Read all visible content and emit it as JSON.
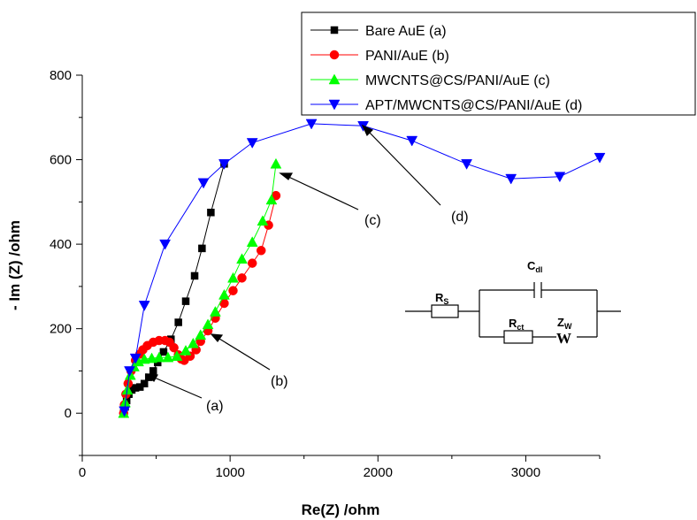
{
  "chart_data": {
    "type": "scatter",
    "xlabel": "Re(Z) /ohm",
    "ylabel": "- Im (Z) /ohm",
    "xlim": [
      0,
      3500
    ],
    "ylim": [
      -100,
      800
    ],
    "xticks": [
      0,
      1000,
      2000,
      3000
    ],
    "yticks": [
      0,
      200,
      400,
      600,
      800
    ],
    "legend_position": "top-right",
    "series": [
      {
        "name": "Bare AuE (a)",
        "color": "#000000",
        "marker": "square",
        "points": [
          [
            280,
            0
          ],
          [
            290,
            15
          ],
          [
            300,
            30
          ],
          [
            315,
            45
          ],
          [
            335,
            55
          ],
          [
            360,
            60
          ],
          [
            390,
            62
          ],
          [
            420,
            70
          ],
          [
            450,
            85
          ],
          [
            480,
            100
          ],
          [
            510,
            120
          ],
          [
            550,
            145
          ],
          [
            600,
            175
          ],
          [
            650,
            215
          ],
          [
            700,
            265
          ],
          [
            760,
            325
          ],
          [
            810,
            390
          ],
          [
            870,
            475
          ],
          [
            960,
            590
          ]
        ]
      },
      {
        "name": "PANI/AuE (b)",
        "color": "#ff0000",
        "marker": "circle",
        "points": [
          [
            280,
            0
          ],
          [
            285,
            20
          ],
          [
            295,
            45
          ],
          [
            310,
            70
          ],
          [
            330,
            100
          ],
          [
            360,
            125
          ],
          [
            390,
            140
          ],
          [
            410,
            150
          ],
          [
            440,
            160
          ],
          [
            480,
            168
          ],
          [
            520,
            172
          ],
          [
            560,
            172
          ],
          [
            590,
            168
          ],
          [
            620,
            155
          ],
          [
            650,
            138
          ],
          [
            670,
            128
          ],
          [
            690,
            125
          ],
          [
            730,
            135
          ],
          [
            770,
            150
          ],
          [
            800,
            170
          ],
          [
            850,
            195
          ],
          [
            900,
            225
          ],
          [
            960,
            260
          ],
          [
            1020,
            290
          ],
          [
            1080,
            320
          ],
          [
            1150,
            355
          ],
          [
            1210,
            385
          ],
          [
            1260,
            445
          ],
          [
            1310,
            515
          ]
        ]
      },
      {
        "name": "MWCNTS@CS/PANI/AuE (c)",
        "color": "#00ff00",
        "marker": "triangle-up",
        "points": [
          [
            280,
            0
          ],
          [
            290,
            25
          ],
          [
            305,
            55
          ],
          [
            325,
            90
          ],
          [
            350,
            110
          ],
          [
            380,
            122
          ],
          [
            420,
            128
          ],
          [
            470,
            130
          ],
          [
            520,
            132
          ],
          [
            580,
            132
          ],
          [
            640,
            135
          ],
          [
            700,
            148
          ],
          [
            750,
            165
          ],
          [
            800,
            185
          ],
          [
            850,
            210
          ],
          [
            900,
            240
          ],
          [
            960,
            280
          ],
          [
            1020,
            320
          ],
          [
            1080,
            365
          ],
          [
            1150,
            405
          ],
          [
            1220,
            455
          ],
          [
            1280,
            505
          ],
          [
            1310,
            590
          ]
        ]
      },
      {
        "name": "APT/MWCNTS@CS/PANI/AuE (d)",
        "color": "#0000ff",
        "marker": "triangle-down",
        "points": [
          [
            285,
            5
          ],
          [
            320,
            100
          ],
          [
            360,
            130
          ],
          [
            420,
            255
          ],
          [
            560,
            400
          ],
          [
            820,
            545
          ],
          [
            960,
            590
          ],
          [
            1150,
            640
          ],
          [
            1550,
            685
          ],
          [
            1900,
            680
          ],
          [
            2230,
            645
          ],
          [
            2600,
            590
          ],
          [
            2900,
            555
          ],
          [
            3230,
            560
          ],
          [
            3500,
            605
          ]
        ]
      }
    ],
    "annotations": [
      {
        "label": "(a)"
      },
      {
        "label": "(b)"
      },
      {
        "label": "(c)"
      },
      {
        "label": "(d)"
      }
    ],
    "inset_circuit": {
      "components": [
        "R",
        "C",
        "R",
        "Z"
      ],
      "subscripts": [
        "S",
        "dl",
        "ct",
        "W"
      ],
      "warburg_symbol": "W"
    }
  }
}
